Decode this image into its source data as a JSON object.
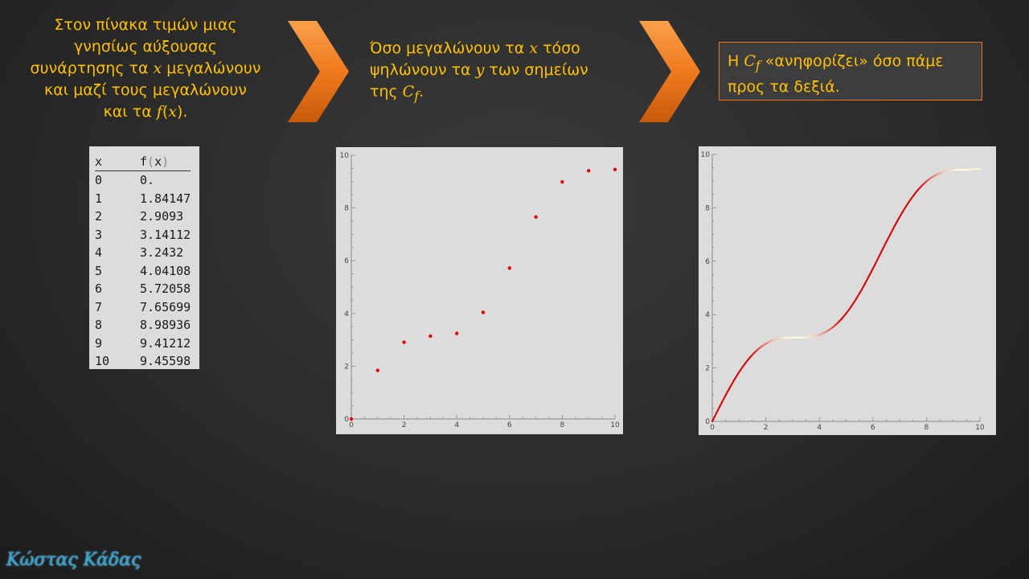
{
  "captions": {
    "left": [
      "Στον πίνακα τιμών μιας",
      "γνησίως αύξουσας",
      "συνάρτησης τα ",
      "x",
      " μεγαλώνουν",
      "και μαζί τους μεγαλώνουν",
      "και τα ",
      "f",
      "(",
      "x",
      ")."
    ],
    "middle": [
      "Όσο μεγαλώνουν τα ",
      "x",
      " τόσο",
      "ψηλώνουν τα ",
      "y",
      " των σημείων",
      "της ",
      "C",
      "f",
      "."
    ],
    "right": [
      "Η ",
      "C",
      "f",
      " «ανηφορίζει» όσο πάμε",
      "προς τα δεξιά."
    ]
  },
  "table": {
    "headers": [
      "x",
      "f",
      "(",
      "x",
      ")"
    ],
    "rows": [
      [
        "0",
        "0."
      ],
      [
        "1",
        "1.84147"
      ],
      [
        "2",
        "2.9093"
      ],
      [
        "3",
        "3.14112"
      ],
      [
        "4",
        "3.2432"
      ],
      [
        "5",
        "4.04108"
      ],
      [
        "6",
        "5.72058"
      ],
      [
        "7",
        "7.65699"
      ],
      [
        "8",
        "8.98936"
      ],
      [
        "9",
        "9.41212"
      ],
      [
        "10",
        "9.45598"
      ]
    ]
  },
  "chart_data": [
    {
      "type": "scatter",
      "x": [
        0,
        1,
        2,
        3,
        4,
        5,
        6,
        7,
        8,
        9,
        10
      ],
      "y": [
        0,
        1.84147,
        2.9093,
        3.14112,
        3.2432,
        4.04108,
        5.72058,
        7.65699,
        8.98936,
        9.41212,
        9.45598
      ],
      "xlim": [
        0,
        10
      ],
      "ylim": [
        0,
        10
      ],
      "xticks": [
        "0",
        "2",
        "4",
        "6",
        "8",
        "10"
      ],
      "yticks": [
        "0",
        "2",
        "4",
        "6",
        "8",
        "10"
      ],
      "point_color": "#e00000",
      "title": "",
      "xlabel": "",
      "ylabel": ""
    },
    {
      "type": "line",
      "function_samples": {
        "x": [
          0,
          0.5,
          1,
          1.5,
          2,
          2.5,
          3,
          3.5,
          4,
          4.5,
          5,
          5.5,
          6,
          6.5,
          7,
          7.5,
          8,
          8.5,
          9,
          9.5,
          10
        ],
        "y": [
          0,
          0.979,
          1.841,
          2.497,
          2.909,
          3.098,
          3.141,
          3.149,
          3.243,
          3.523,
          4.041,
          4.794,
          5.721,
          6.715,
          7.657,
          8.438,
          8.989,
          9.298,
          9.412,
          9.425,
          9.456
        ]
      },
      "xlim": [
        0,
        10
      ],
      "ylim": [
        0,
        10
      ],
      "xticks": [
        "0",
        "2",
        "4",
        "6",
        "8",
        "10"
      ],
      "yticks": [
        "0",
        "2",
        "4",
        "6",
        "8",
        "10"
      ],
      "gradient_colors": [
        "#d01010",
        "#ffffe0"
      ],
      "title": "",
      "xlabel": "",
      "ylabel": ""
    }
  ],
  "author": "Κώστας Κάδας",
  "colors": {
    "caption": "#ffc000",
    "arrow": "#f07a1e",
    "box_border": "#e8732a",
    "author": "#2aa7d8"
  }
}
